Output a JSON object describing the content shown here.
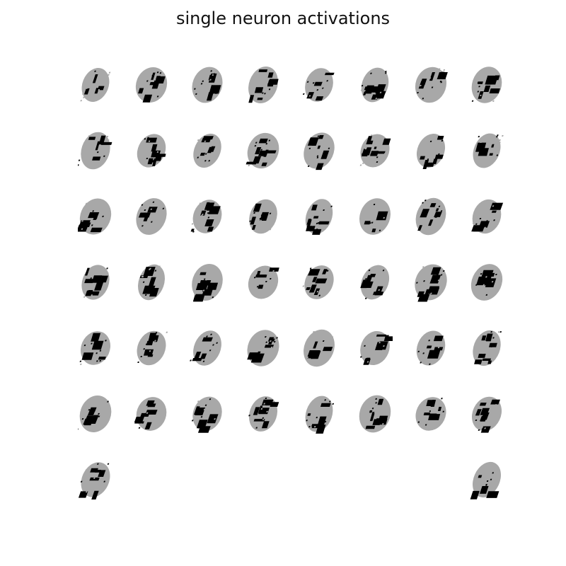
{
  "figure": {
    "title": "single neuron activations",
    "colors": {
      "background": "#ffffff",
      "active": "#000000",
      "inactive": "#a8a8a8"
    },
    "layout": "8 columns x 7 rows grid of binary activation maps; last row has only first and last cells filled",
    "cell_count": 50,
    "filled_slots": [
      0,
      1,
      2,
      3,
      4,
      5,
      6,
      7,
      8,
      9,
      10,
      11,
      12,
      13,
      14,
      15,
      16,
      17,
      18,
      19,
      20,
      21,
      22,
      23,
      24,
      25,
      26,
      27,
      28,
      29,
      30,
      31,
      32,
      33,
      34,
      35,
      36,
      37,
      38,
      39,
      40,
      41,
      42,
      43,
      44,
      45,
      46,
      47,
      48,
      55
    ]
  }
}
